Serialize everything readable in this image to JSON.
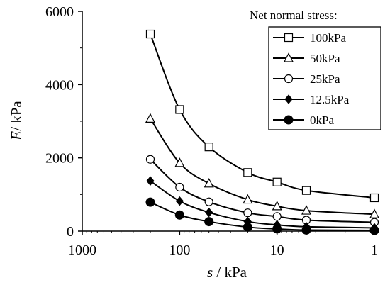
{
  "chart_data": {
    "type": "line",
    "xscale": "log",
    "x_reversed": true,
    "xlim": [
      1000,
      1
    ],
    "ylim": [
      0,
      6000
    ],
    "x": [
      200,
      100,
      50,
      20,
      10,
      5,
      1
    ],
    "x_ticks": [
      1000,
      100,
      10,
      1
    ],
    "x_tick_labels": [
      "1000",
      "100",
      "10",
      "1"
    ],
    "y_ticks": [
      0,
      2000,
      4000,
      6000
    ],
    "y_tick_labels": [
      "0",
      "2000",
      "4000",
      "6000"
    ],
    "xlabel_italic": "s",
    "xlabel_rest": " / kPa",
    "ylabel_italic": "E",
    "ylabel_rest": "/ kPa",
    "legend_title": "Net normal stress:",
    "legend_position": "top-right",
    "grid": false,
    "series": [
      {
        "name": "100kPa",
        "marker": "square-open",
        "values": [
          5380,
          3320,
          2300,
          1600,
          1340,
          1110,
          910
        ]
      },
      {
        "name": "50kPa",
        "marker": "triangle-open",
        "values": [
          3070,
          1860,
          1300,
          860,
          680,
          560,
          460
        ]
      },
      {
        "name": "25kPa",
        "marker": "circle-open",
        "values": [
          1960,
          1200,
          800,
          500,
          400,
          300,
          240
        ]
      },
      {
        "name": "12.5kPa",
        "marker": "diamond-filled",
        "values": [
          1370,
          820,
          510,
          260,
          170,
          120,
          90
        ]
      },
      {
        "name": "0kPa",
        "marker": "circle-filled",
        "values": [
          790,
          440,
          260,
          110,
          60,
          30,
          20
        ]
      }
    ]
  }
}
